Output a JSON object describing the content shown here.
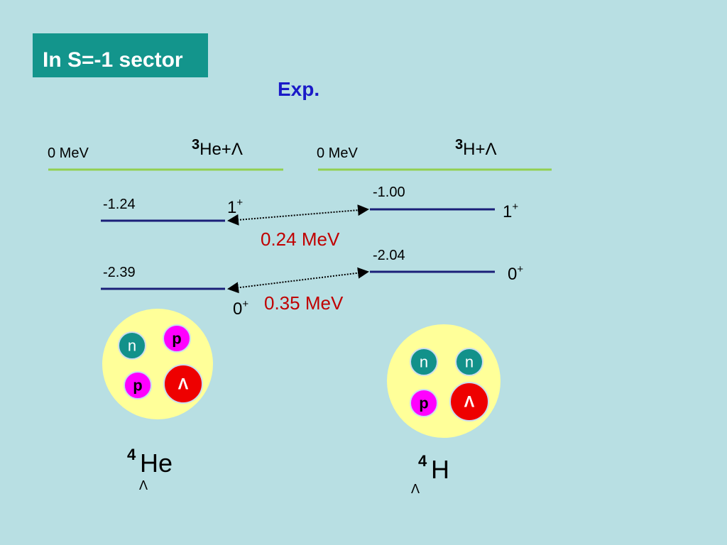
{
  "title": "In S=-1 sector",
  "subtitle": "Exp.",
  "left": {
    "threshold": "0 MeV",
    "threshold_mass": "3",
    "threshold_label": "He+Λ",
    "levels": [
      {
        "energy": "-1.24",
        "spin": "1",
        "parity": "+"
      },
      {
        "energy": "-2.39",
        "spin": "0",
        "parity": "+"
      }
    ],
    "particles": [
      "n",
      "p",
      "p",
      "Λ"
    ],
    "nucleus": {
      "mass": "4",
      "symbol": "He",
      "sub": "Λ"
    }
  },
  "right": {
    "threshold": "0 MeV",
    "threshold_mass": "3",
    "threshold_label": "H+Λ",
    "levels": [
      {
        "energy": "-1.00",
        "spin": "1",
        "parity": "+"
      },
      {
        "energy": "-2.04",
        "spin": "0",
        "parity": "+"
      }
    ],
    "particles": [
      "n",
      "n",
      "p",
      "Λ"
    ],
    "nucleus": {
      "mass": "4",
      "symbol": "H",
      "sub": "Λ"
    }
  },
  "splittings": [
    "0.24 MeV",
    "0.35 MeV"
  ]
}
